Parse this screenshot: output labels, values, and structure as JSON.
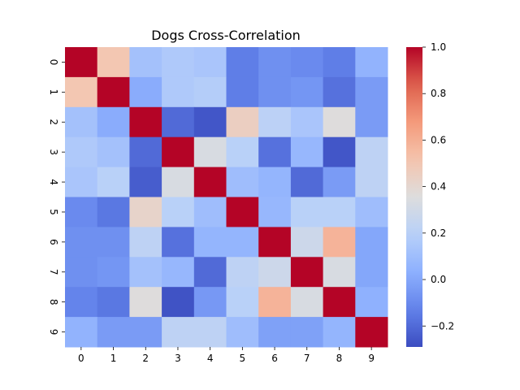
{
  "chart_data": {
    "type": "heatmap",
    "title": "Dogs Cross-Correlation",
    "xlabel": "",
    "ylabel": "",
    "row_labels": [
      "0",
      "1",
      "2",
      "3",
      "4",
      "5",
      "6",
      "7",
      "8",
      "9"
    ],
    "col_labels": [
      "0",
      "1",
      "2",
      "3",
      "4",
      "5",
      "6",
      "7",
      "8",
      "9"
    ],
    "values": [
      [
        1.0,
        0.5,
        0.12,
        0.16,
        0.14,
        -0.14,
        -0.08,
        -0.1,
        -0.14,
        0.05
      ],
      [
        0.5,
        1.0,
        0.02,
        0.16,
        0.18,
        -0.14,
        -0.08,
        -0.06,
        -0.18,
        -0.04
      ],
      [
        0.12,
        0.02,
        1.0,
        -0.2,
        -0.26,
        0.45,
        0.21,
        0.14,
        0.36,
        -0.04
      ],
      [
        0.16,
        0.12,
        -0.2,
        1.0,
        0.33,
        0.2,
        -0.18,
        0.07,
        -0.26,
        0.22
      ],
      [
        0.14,
        0.2,
        -0.24,
        0.33,
        1.0,
        0.1,
        0.06,
        -0.2,
        -0.04,
        0.22
      ],
      [
        -0.1,
        -0.16,
        0.42,
        0.2,
        0.1,
        1.0,
        0.07,
        0.2,
        0.2,
        0.1
      ],
      [
        -0.08,
        -0.08,
        0.22,
        -0.18,
        0.06,
        0.06,
        1.0,
        0.28,
        0.58,
        0.0
      ],
      [
        -0.08,
        -0.06,
        0.12,
        0.07,
        -0.2,
        0.22,
        0.28,
        1.0,
        0.33,
        0.0
      ],
      [
        -0.12,
        -0.16,
        0.36,
        -0.27,
        -0.05,
        0.2,
        0.58,
        0.33,
        1.0,
        0.04
      ],
      [
        0.05,
        -0.04,
        -0.04,
        0.22,
        0.22,
        0.1,
        -0.02,
        -0.02,
        0.06,
        1.0
      ]
    ],
    "colorbar": {
      "min": -0.29,
      "max": 1.0,
      "ticks": [
        -0.2,
        0.0,
        0.2,
        0.4,
        0.6,
        0.8,
        1.0
      ],
      "tick_labels": [
        "−0.2",
        "0.0",
        "0.2",
        "0.4",
        "0.6",
        "0.8",
        "1.0"
      ]
    },
    "colormap": "coolwarm",
    "grid": false,
    "legend": "colorbar-right"
  }
}
